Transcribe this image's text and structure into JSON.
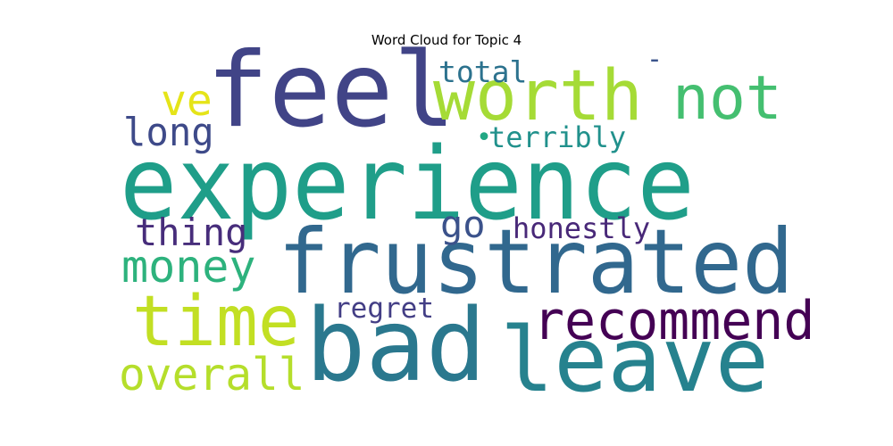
{
  "chart_data": {
    "type": "wordcloud",
    "title": "Word Cloud for Topic 4",
    "words": [
      {
        "text": "experience",
        "color": "#1f9e89"
      },
      {
        "text": "frustrated",
        "color": "#31688e"
      },
      {
        "text": "bad",
        "color": "#2a788e"
      },
      {
        "text": "feel",
        "color": "#414487"
      },
      {
        "text": "leave",
        "color": "#26828e"
      },
      {
        "text": "worth",
        "color": "#a5db36"
      },
      {
        "text": "not",
        "color": "#44bf70"
      },
      {
        "text": "time",
        "color": "#c2df23"
      },
      {
        "text": "recommend",
        "color": "#440154"
      },
      {
        "text": "money",
        "color": "#2db27d"
      },
      {
        "text": "overall",
        "color": "#b5de2b"
      },
      {
        "text": "go",
        "color": "#3b528b"
      },
      {
        "text": "thing",
        "color": "#472d7b"
      },
      {
        "text": "honestly",
        "color": "#482878"
      },
      {
        "text": "long",
        "color": "#3e4a89"
      },
      {
        "text": "total",
        "color": "#2c728e"
      },
      {
        "text": "regret",
        "color": "#433e85"
      },
      {
        "text": "ve",
        "color": "#e5e419"
      },
      {
        "text": "terribly",
        "color": "#21918c"
      },
      {
        "text": "-",
        "color": "#3a548c"
      },
      {
        "text": "•",
        "color": "#22a884"
      }
    ]
  }
}
